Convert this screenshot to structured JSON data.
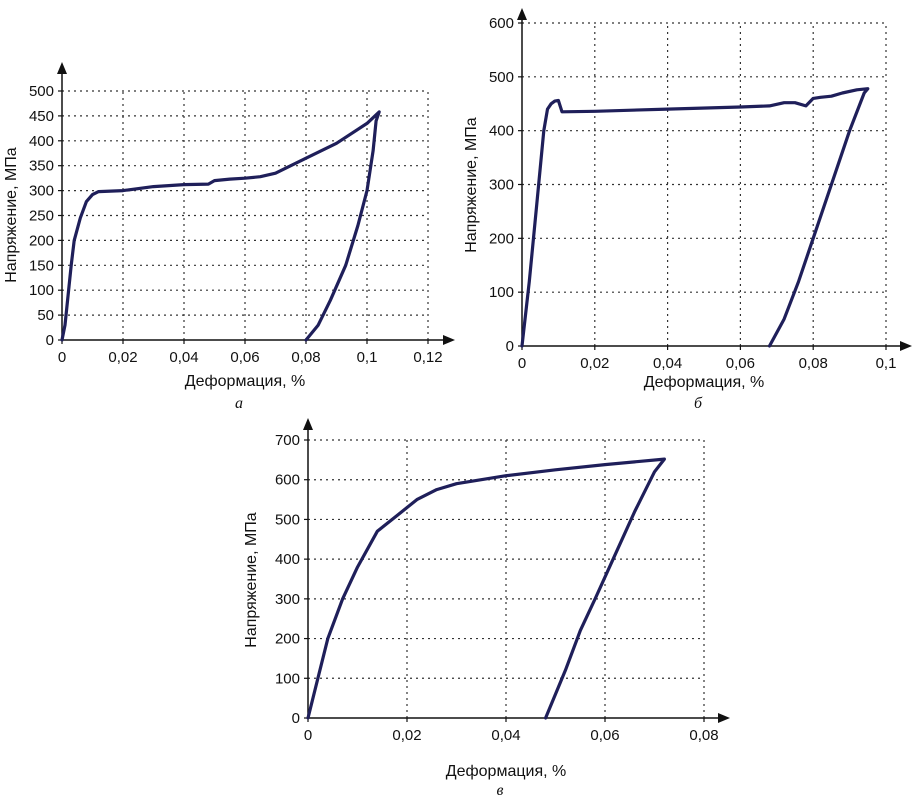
{
  "chart_data": [
    {
      "id": "a",
      "type": "line",
      "panel_label": "а",
      "xlabel": "Деформация, %",
      "ylabel": "Напряжение, МПа",
      "xlim": [
        0,
        0.12
      ],
      "ylim": [
        0,
        500
      ],
      "xticks": [
        0,
        0.02,
        0.04,
        0.06,
        0.08,
        0.1,
        0.12
      ],
      "xtick_labels": [
        "0",
        "0,02",
        "0,04",
        "0,06",
        "0,08",
        "0,1",
        "0,12"
      ],
      "yticks": [
        0,
        50,
        100,
        150,
        200,
        250,
        300,
        350,
        400,
        450,
        500
      ],
      "ytick_labels": [
        "0",
        "50",
        "100",
        "150",
        "200",
        "250",
        "300",
        "350",
        "400",
        "450",
        "500"
      ],
      "grid": true,
      "series": [
        {
          "points": [
            [
              0,
              0
            ],
            [
              0.001,
              30
            ],
            [
              0.002,
              90
            ],
            [
              0.003,
              150
            ],
            [
              0.004,
              200
            ],
            [
              0.006,
              245
            ],
            [
              0.008,
              278
            ],
            [
              0.01,
              292
            ],
            [
              0.012,
              298
            ],
            [
              0.02,
              300
            ],
            [
              0.03,
              308
            ],
            [
              0.04,
              312
            ],
            [
              0.048,
              313
            ],
            [
              0.05,
              320
            ],
            [
              0.055,
              323
            ],
            [
              0.06,
              325
            ],
            [
              0.065,
              328
            ],
            [
              0.07,
              335
            ],
            [
              0.08,
              365
            ],
            [
              0.09,
              395
            ],
            [
              0.1,
              435
            ],
            [
              0.104,
              458
            ],
            [
              0.103,
              440
            ],
            [
              0.102,
              380
            ],
            [
              0.1,
              300
            ],
            [
              0.097,
              230
            ],
            [
              0.093,
              150
            ],
            [
              0.088,
              80
            ],
            [
              0.084,
              30
            ],
            [
              0.08,
              0
            ]
          ]
        }
      ]
    },
    {
      "id": "b",
      "type": "line",
      "panel_label": "б",
      "xlabel": "Деформация, %",
      "ylabel": "Напряжение, МПа",
      "xlim": [
        0,
        0.1
      ],
      "ylim": [
        0,
        600
      ],
      "xticks": [
        0,
        0.02,
        0.04,
        0.06,
        0.08,
        0.1
      ],
      "xtick_labels": [
        "0",
        "0,02",
        "0,04",
        "0,06",
        "0,08",
        "0,1"
      ],
      "yticks": [
        0,
        100,
        200,
        300,
        400,
        500,
        600
      ],
      "ytick_labels": [
        "0",
        "100",
        "200",
        "300",
        "400",
        "500",
        "600"
      ],
      "grid": true,
      "series": [
        {
          "points": [
            [
              0,
              0
            ],
            [
              0.002,
              120
            ],
            [
              0.004,
              260
            ],
            [
              0.006,
              400
            ],
            [
              0.007,
              440
            ],
            [
              0.008,
              450
            ],
            [
              0.009,
              455
            ],
            [
              0.01,
              456
            ],
            [
              0.011,
              435
            ],
            [
              0.02,
              436
            ],
            [
              0.04,
              440
            ],
            [
              0.06,
              444
            ],
            [
              0.068,
              446
            ],
            [
              0.072,
              452
            ],
            [
              0.075,
              452
            ],
            [
              0.078,
              446
            ],
            [
              0.08,
              460
            ],
            [
              0.082,
              462
            ],
            [
              0.085,
              464
            ],
            [
              0.088,
              470
            ],
            [
              0.092,
              476
            ],
            [
              0.095,
              478
            ],
            [
              0.094,
              470
            ],
            [
              0.09,
              400
            ],
            [
              0.085,
              300
            ],
            [
              0.08,
              200
            ],
            [
              0.076,
              120
            ],
            [
              0.072,
              50
            ],
            [
              0.068,
              0
            ]
          ]
        }
      ]
    },
    {
      "id": "c",
      "type": "line",
      "panel_label": "в",
      "xlabel": "Деформация, %",
      "ylabel": "Напряжение, МПа",
      "xlim": [
        0,
        0.08
      ],
      "ylim": [
        0,
        700
      ],
      "xticks": [
        0,
        0.02,
        0.04,
        0.06,
        0.08
      ],
      "xtick_labels": [
        "0",
        "0,02",
        "0,04",
        "0,06",
        "0,08"
      ],
      "yticks": [
        0,
        100,
        200,
        300,
        400,
        500,
        600,
        700
      ],
      "ytick_labels": [
        "0",
        "100",
        "200",
        "300",
        "400",
        "500",
        "600",
        "700"
      ],
      "grid": true,
      "series": [
        {
          "points": [
            [
              0,
              0
            ],
            [
              0.002,
              100
            ],
            [
              0.004,
              200
            ],
            [
              0.007,
              300
            ],
            [
              0.01,
              380
            ],
            [
              0.014,
              470
            ],
            [
              0.018,
              510
            ],
            [
              0.022,
              550
            ],
            [
              0.026,
              575
            ],
            [
              0.03,
              590
            ],
            [
              0.04,
              610
            ],
            [
              0.05,
              625
            ],
            [
              0.06,
              638
            ],
            [
              0.072,
              652
            ],
            [
              0.07,
              620
            ],
            [
              0.066,
              520
            ],
            [
              0.062,
              410
            ],
            [
              0.058,
              300
            ],
            [
              0.055,
              220
            ],
            [
              0.052,
              120
            ],
            [
              0.048,
              0
            ]
          ]
        }
      ]
    }
  ],
  "colors": {
    "curve": "#1f1f5a",
    "axis": "#111111",
    "grid": "#333333",
    "background": "#ffffff"
  }
}
